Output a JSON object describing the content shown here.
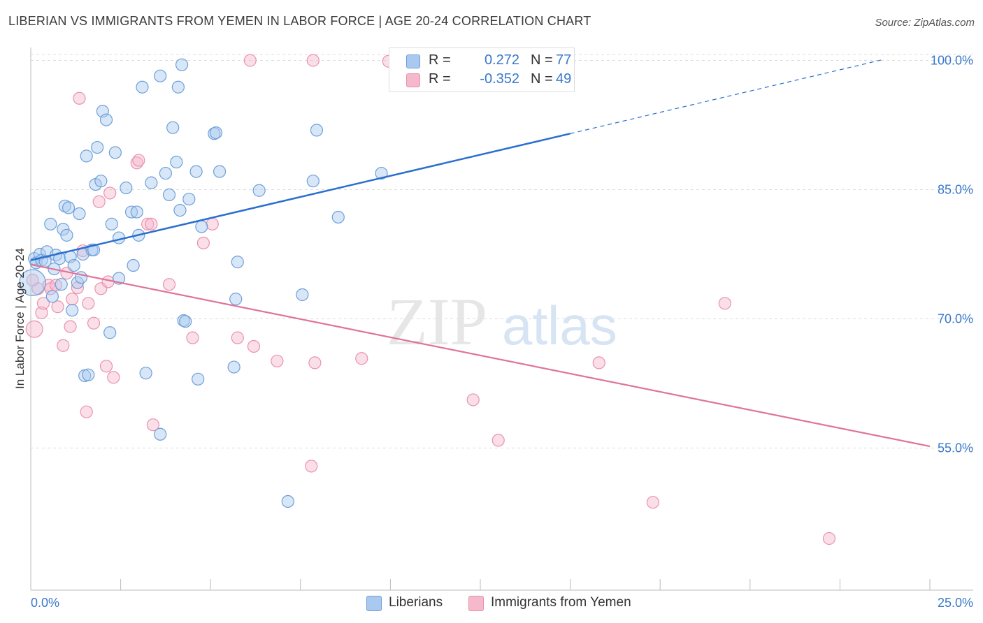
{
  "header": {
    "title": "LIBERIAN VS IMMIGRANTS FROM YEMEN IN LABOR FORCE | AGE 20-24 CORRELATION CHART",
    "source": "Source: ZipAtlas.com"
  },
  "watermark": {
    "zip": "ZIP",
    "atlas": "atlas"
  },
  "colors": {
    "blue_fill": "#a9c9f0",
    "blue_stroke": "#6f9fd8",
    "blue_line": "#2a6fcf",
    "pink_fill": "#f6b9cc",
    "pink_stroke": "#e992ad",
    "pink_line": "#e0739b",
    "axis_text": "#3a78c9",
    "grid": "#dddddd"
  },
  "legend": {
    "series": [
      {
        "r_label": "R =",
        "r_value": "0.272",
        "n_label": "N =",
        "n_value": "77"
      },
      {
        "r_label": "R =",
        "r_value": "-0.352",
        "n_label": "N =",
        "n_value": "49"
      }
    ],
    "bottom": [
      "Liberians",
      "Immigrants from Yemen"
    ]
  },
  "chart_data": {
    "type": "scatter",
    "title": "LIBERIAN VS IMMIGRANTS FROM YEMEN IN LABOR FORCE | AGE 20-24 CORRELATION CHART",
    "xlabel": "",
    "ylabel": "In Labor Force | Age 20-24",
    "xlim": [
      0,
      25
    ],
    "ylim": [
      38.5,
      101.5
    ],
    "x_tick_labels": [
      "0.0%",
      "25.0%"
    ],
    "y_ticks": [
      55,
      70,
      85,
      100
    ],
    "y_tick_labels": [
      "55.0%",
      "70.0%",
      "85.0%",
      "100.0%"
    ],
    "grid": true,
    "series": [
      {
        "name": "Liberians",
        "r": 0.272,
        "n": 77,
        "trend": {
          "x0": 0,
          "y0": 76.8,
          "x1": 15,
          "y1": 91.5,
          "dashed_to_x": 23.7,
          "dashed_to_y": 100.1
        },
        "points": [
          [
            0.05,
            74.2,
            22
          ],
          [
            0.1,
            77.0,
            10
          ],
          [
            0.15,
            76.5,
            10
          ],
          [
            0.25,
            77.5,
            10
          ],
          [
            0.3,
            76.8,
            10
          ],
          [
            0.4,
            76.7,
            10
          ],
          [
            0.45,
            77.8,
            10
          ],
          [
            0.55,
            81.0,
            10
          ],
          [
            0.6,
            72.6,
            10
          ],
          [
            0.65,
            75.8,
            10
          ],
          [
            0.7,
            77.4,
            10
          ],
          [
            0.8,
            77.0,
            10
          ],
          [
            0.85,
            74.0,
            10
          ],
          [
            0.9,
            80.4,
            10
          ],
          [
            0.95,
            83.1,
            10
          ],
          [
            1.0,
            79.7,
            10
          ],
          [
            1.05,
            82.9,
            10
          ],
          [
            1.1,
            77.2,
            10
          ],
          [
            1.15,
            71.0,
            10
          ],
          [
            1.2,
            76.2,
            10
          ],
          [
            1.3,
            74.2,
            10
          ],
          [
            1.35,
            82.2,
            10
          ],
          [
            1.4,
            74.8,
            10
          ],
          [
            1.45,
            77.5,
            10
          ],
          [
            1.5,
            63.4,
            10
          ],
          [
            1.55,
            88.9,
            10
          ],
          [
            1.6,
            63.5,
            10
          ],
          [
            1.7,
            78.0,
            10
          ],
          [
            1.75,
            78.0,
            10
          ],
          [
            1.8,
            85.6,
            10
          ],
          [
            1.85,
            89.9,
            10
          ],
          [
            1.95,
            86.0,
            10
          ],
          [
            2.0,
            94.1,
            10
          ],
          [
            2.1,
            93.1,
            10
          ],
          [
            2.2,
            68.4,
            10
          ],
          [
            2.25,
            81.0,
            10
          ],
          [
            2.35,
            89.3,
            10
          ],
          [
            2.45,
            74.7,
            10
          ],
          [
            2.45,
            79.4,
            10
          ],
          [
            2.65,
            85.2,
            10
          ],
          [
            2.8,
            82.4,
            10
          ],
          [
            2.85,
            76.2,
            10
          ],
          [
            2.95,
            82.4,
            10
          ],
          [
            3.0,
            79.7,
            10
          ],
          [
            3.1,
            96.9,
            10
          ],
          [
            3.2,
            63.7,
            10
          ],
          [
            3.35,
            85.8,
            10
          ],
          [
            3.6,
            56.6,
            10
          ],
          [
            3.75,
            86.9,
            10
          ],
          [
            3.85,
            84.4,
            10
          ],
          [
            3.95,
            92.2,
            10
          ],
          [
            4.05,
            88.2,
            10
          ],
          [
            4.1,
            96.9,
            10
          ],
          [
            4.15,
            82.6,
            10
          ],
          [
            4.25,
            69.8,
            10
          ],
          [
            4.3,
            69.7,
            10
          ],
          [
            4.4,
            83.9,
            10
          ],
          [
            4.6,
            87.1,
            10
          ],
          [
            4.65,
            63.0,
            10
          ],
          [
            4.75,
            80.7,
            10
          ],
          [
            5.1,
            91.5,
            10
          ],
          [
            5.15,
            91.6,
            10
          ],
          [
            5.25,
            87.1,
            10
          ],
          [
            5.65,
            64.4,
            10
          ],
          [
            5.7,
            72.3,
            10
          ],
          [
            5.75,
            76.6,
            10
          ],
          [
            6.35,
            84.9,
            10
          ],
          [
            7.15,
            48.8,
            10
          ],
          [
            7.55,
            72.8,
            10
          ],
          [
            7.85,
            86.0,
            10
          ],
          [
            7.95,
            91.9,
            10
          ],
          [
            8.55,
            81.8,
            10
          ],
          [
            9.75,
            86.9,
            10
          ],
          [
            10.85,
            99.9,
            10
          ],
          [
            12.1,
            99.9,
            10
          ],
          [
            4.2,
            99.5,
            10
          ],
          [
            3.6,
            98.2,
            10
          ]
        ]
      },
      {
        "name": "Immigrants from Yemen",
        "r": -0.352,
        "n": 49,
        "trend": {
          "x0": 0,
          "y0": 76.3,
          "x1": 25,
          "y1": 55.2
        },
        "points": [
          [
            0.1,
            68.8,
            14
          ],
          [
            0.2,
            73.5,
            10
          ],
          [
            0.3,
            70.7,
            10
          ],
          [
            0.35,
            71.8,
            10
          ],
          [
            0.5,
            73.9,
            10
          ],
          [
            0.55,
            73.5,
            10
          ],
          [
            0.7,
            73.9,
            10
          ],
          [
            0.75,
            71.4,
            10
          ],
          [
            0.9,
            66.9,
            10
          ],
          [
            1.0,
            75.3,
            10
          ],
          [
            1.1,
            69.1,
            10
          ],
          [
            1.15,
            72.3,
            10
          ],
          [
            1.3,
            73.6,
            10
          ],
          [
            1.35,
            95.6,
            10
          ],
          [
            1.45,
            77.9,
            10
          ],
          [
            1.55,
            59.2,
            10
          ],
          [
            1.6,
            71.8,
            10
          ],
          [
            1.75,
            69.5,
            10
          ],
          [
            1.9,
            83.6,
            10
          ],
          [
            1.95,
            73.5,
            10
          ],
          [
            2.1,
            64.5,
            10
          ],
          [
            2.15,
            74.3,
            10
          ],
          [
            2.2,
            84.6,
            10
          ],
          [
            2.3,
            63.2,
            10
          ],
          [
            2.95,
            88.1,
            10
          ],
          [
            3.0,
            88.4,
            10
          ],
          [
            3.25,
            81.0,
            10
          ],
          [
            3.35,
            81.0,
            10
          ],
          [
            3.4,
            57.7,
            10
          ],
          [
            3.85,
            74.0,
            10
          ],
          [
            4.5,
            67.8,
            10
          ],
          [
            4.8,
            78.8,
            10
          ],
          [
            5.05,
            81.0,
            10
          ],
          [
            5.75,
            67.8,
            10
          ],
          [
            6.1,
            100.0,
            10
          ],
          [
            6.2,
            66.8,
            10
          ],
          [
            6.85,
            65.1,
            10
          ],
          [
            7.8,
            52.9,
            10
          ],
          [
            7.85,
            100.0,
            10
          ],
          [
            7.9,
            64.9,
            10
          ],
          [
            9.2,
            65.4,
            10
          ],
          [
            9.95,
            99.9,
            10
          ],
          [
            12.3,
            60.6,
            10
          ],
          [
            13.0,
            55.9,
            10
          ],
          [
            15.8,
            64.9,
            10
          ],
          [
            17.3,
            48.7,
            10
          ],
          [
            19.3,
            71.8,
            10
          ],
          [
            22.2,
            44.5,
            10
          ],
          [
            0.05,
            74.5,
            10
          ]
        ]
      }
    ]
  }
}
